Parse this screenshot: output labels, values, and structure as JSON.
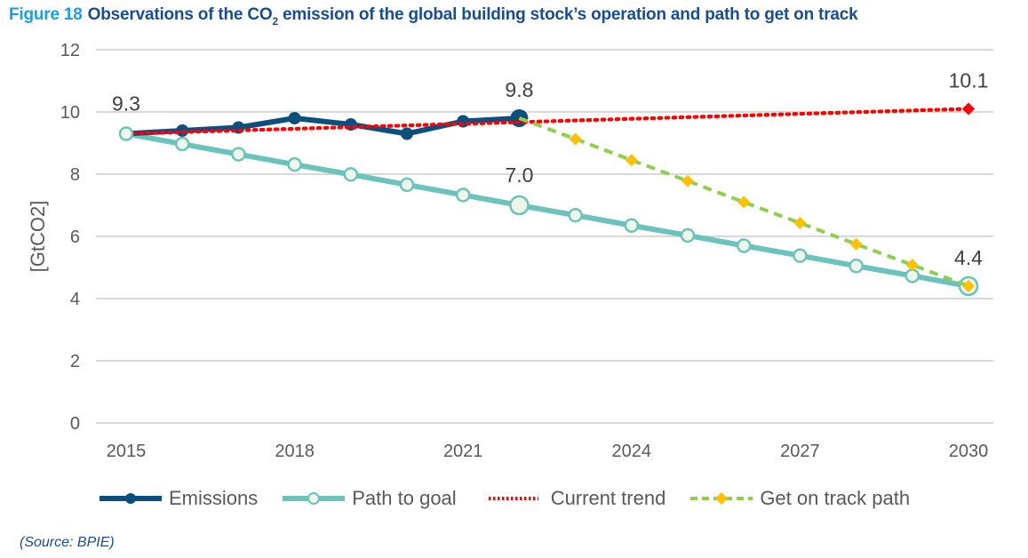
{
  "title": {
    "figure_label": "Figure 18",
    "text_before": "Observations of the CO",
    "subscript": "2",
    "text_after": " emission of the global building stock’s operation and path to get on track"
  },
  "source": "(Source: BPIE)",
  "colors": {
    "title_blue": "#1a4d8c",
    "figure_label_blue": "#1aa0d8",
    "emissions": "#0b4f7e",
    "path_to_goal": "#6cc3bd",
    "current_trend": "#ff0000",
    "get_on_track_line": "#8fcf4f",
    "get_on_track_marker": "#ffc000",
    "grid": "#d9d9d9"
  },
  "chart_data": {
    "type": "line",
    "title": "Observations of the CO2 emission of the global building stock’s operation and path to get on track",
    "xlabel": "",
    "ylabel": "[GtCO2]",
    "ylim": [
      0,
      12
    ],
    "xlim": [
      2015,
      2030
    ],
    "yticks": [
      "0",
      "2",
      "4",
      "6",
      "8",
      "10",
      "12"
    ],
    "xticks": [
      "2015",
      "2018",
      "2021",
      "2024",
      "2027",
      "2030"
    ],
    "grid": true,
    "legend_position": "bottom",
    "series": [
      {
        "name": "Emissions",
        "style": "solid-circle",
        "x": [
          2015,
          2016,
          2017,
          2018,
          2019,
          2020,
          2021,
          2022
        ],
        "values": [
          9.3,
          9.4,
          9.5,
          9.8,
          9.6,
          9.3,
          9.7,
          9.8
        ]
      },
      {
        "name": "Path to goal",
        "style": "solid-open-circle",
        "x": [
          2015,
          2016,
          2017,
          2018,
          2019,
          2020,
          2021,
          2022,
          2023,
          2024,
          2025,
          2026,
          2027,
          2028,
          2029,
          2030
        ],
        "values": [
          9.3,
          8.97,
          8.64,
          8.31,
          7.99,
          7.66,
          7.33,
          7.0,
          6.68,
          6.35,
          6.03,
          5.7,
          5.38,
          5.05,
          4.73,
          4.4
        ]
      },
      {
        "name": "Current trend",
        "style": "dotted",
        "x": [
          2015,
          2030
        ],
        "values": [
          9.3,
          10.1
        ]
      },
      {
        "name": "Get on track path",
        "style": "dashed-diamond",
        "x": [
          2022,
          2023,
          2024,
          2025,
          2026,
          2027,
          2028,
          2029,
          2030
        ],
        "values": [
          9.8,
          9.13,
          8.45,
          7.78,
          7.1,
          6.43,
          5.75,
          5.08,
          4.4
        ]
      }
    ],
    "annotations": [
      {
        "text": "9.3",
        "x": 2015,
        "y": 9.3
      },
      {
        "text": "9.8",
        "x": 2022,
        "y": 9.8
      },
      {
        "text": "7.0",
        "x": 2022,
        "y": 7.0
      },
      {
        "text": "10.1",
        "x": 2030,
        "y": 10.1
      },
      {
        "text": "4.4",
        "x": 2030,
        "y": 4.4
      }
    ]
  },
  "legend": [
    {
      "label": "Emissions"
    },
    {
      "label": "Path to goal"
    },
    {
      "label": "Current trend"
    },
    {
      "label": "Get on track path"
    }
  ]
}
